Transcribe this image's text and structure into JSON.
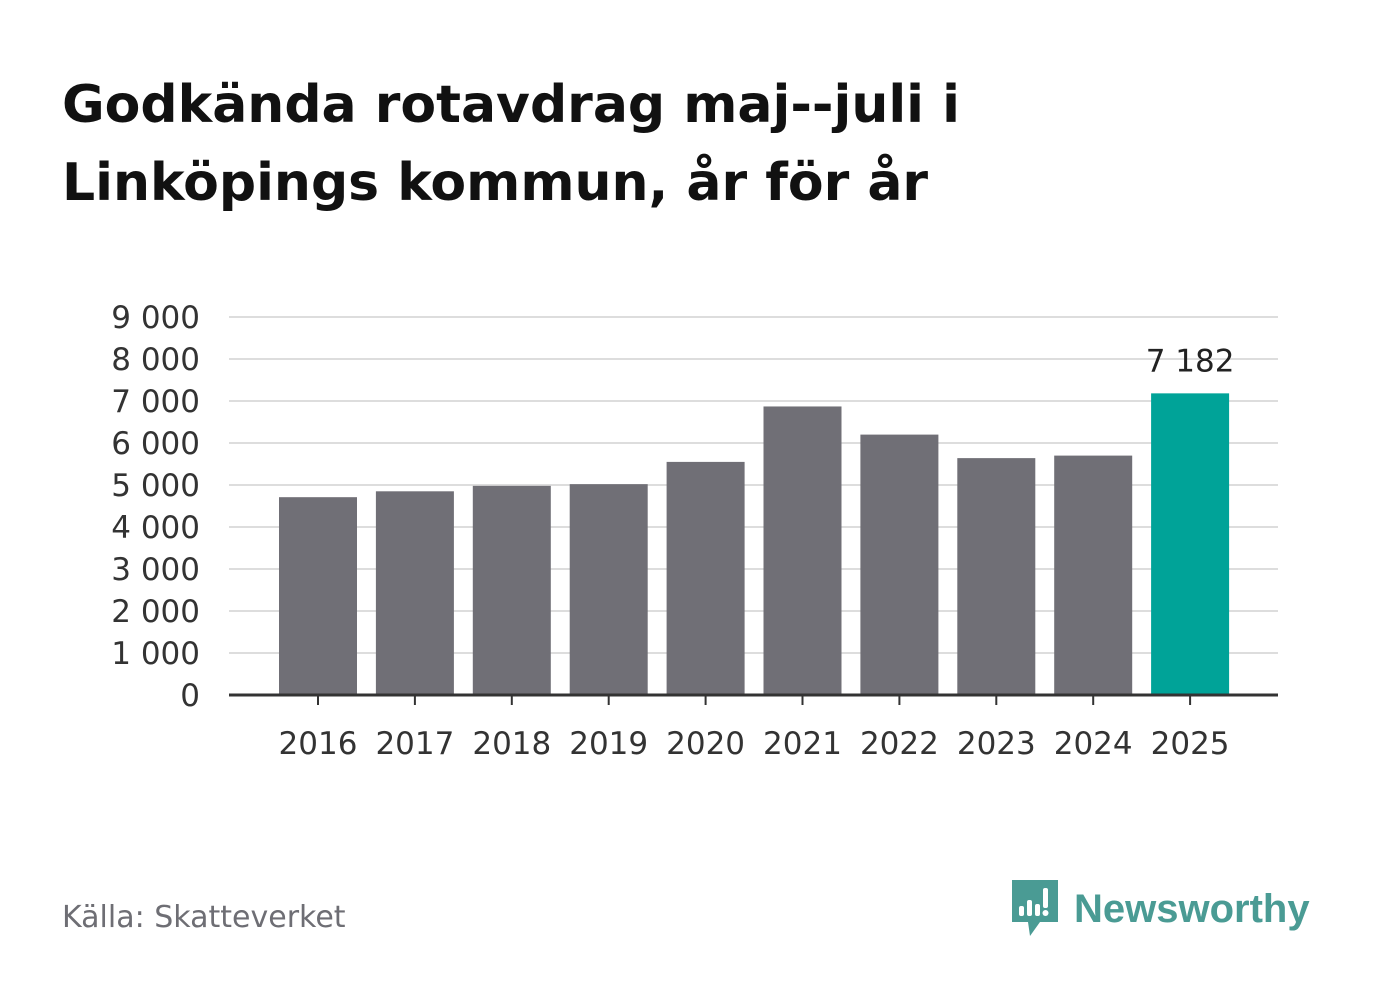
{
  "header": {
    "title_line1": "Godkända rotavdrag maj--juli i",
    "title_line2": "Linköpings kommun, år för år"
  },
  "footer": {
    "source": "Källa: Skatteverket",
    "brand": "Newsworthy"
  },
  "colors": {
    "bar": "#706f76",
    "highlight": "#00a398",
    "grid": "#dddddd",
    "axis": "#333333",
    "brand": "#4a9b94"
  },
  "chart_data": {
    "type": "bar",
    "categories": [
      "2016",
      "2017",
      "2018",
      "2019",
      "2020",
      "2021",
      "2022",
      "2023",
      "2024",
      "2025"
    ],
    "values": [
      4710,
      4850,
      4980,
      5020,
      5550,
      6870,
      6200,
      5640,
      5700,
      7182
    ],
    "highlight_index": 9,
    "data_labels": [
      {
        "index": 9,
        "text": "7 182"
      }
    ],
    "ylim": [
      0,
      9000
    ],
    "yticks": [
      0,
      1000,
      2000,
      3000,
      4000,
      5000,
      6000,
      7000,
      8000,
      9000
    ],
    "ytick_labels": [
      "0",
      "1 000",
      "2 000",
      "3 000",
      "4 000",
      "5 000",
      "6 000",
      "7 000",
      "8 000",
      "9 000"
    ],
    "grid": true,
    "xlabel": "",
    "ylabel": ""
  }
}
